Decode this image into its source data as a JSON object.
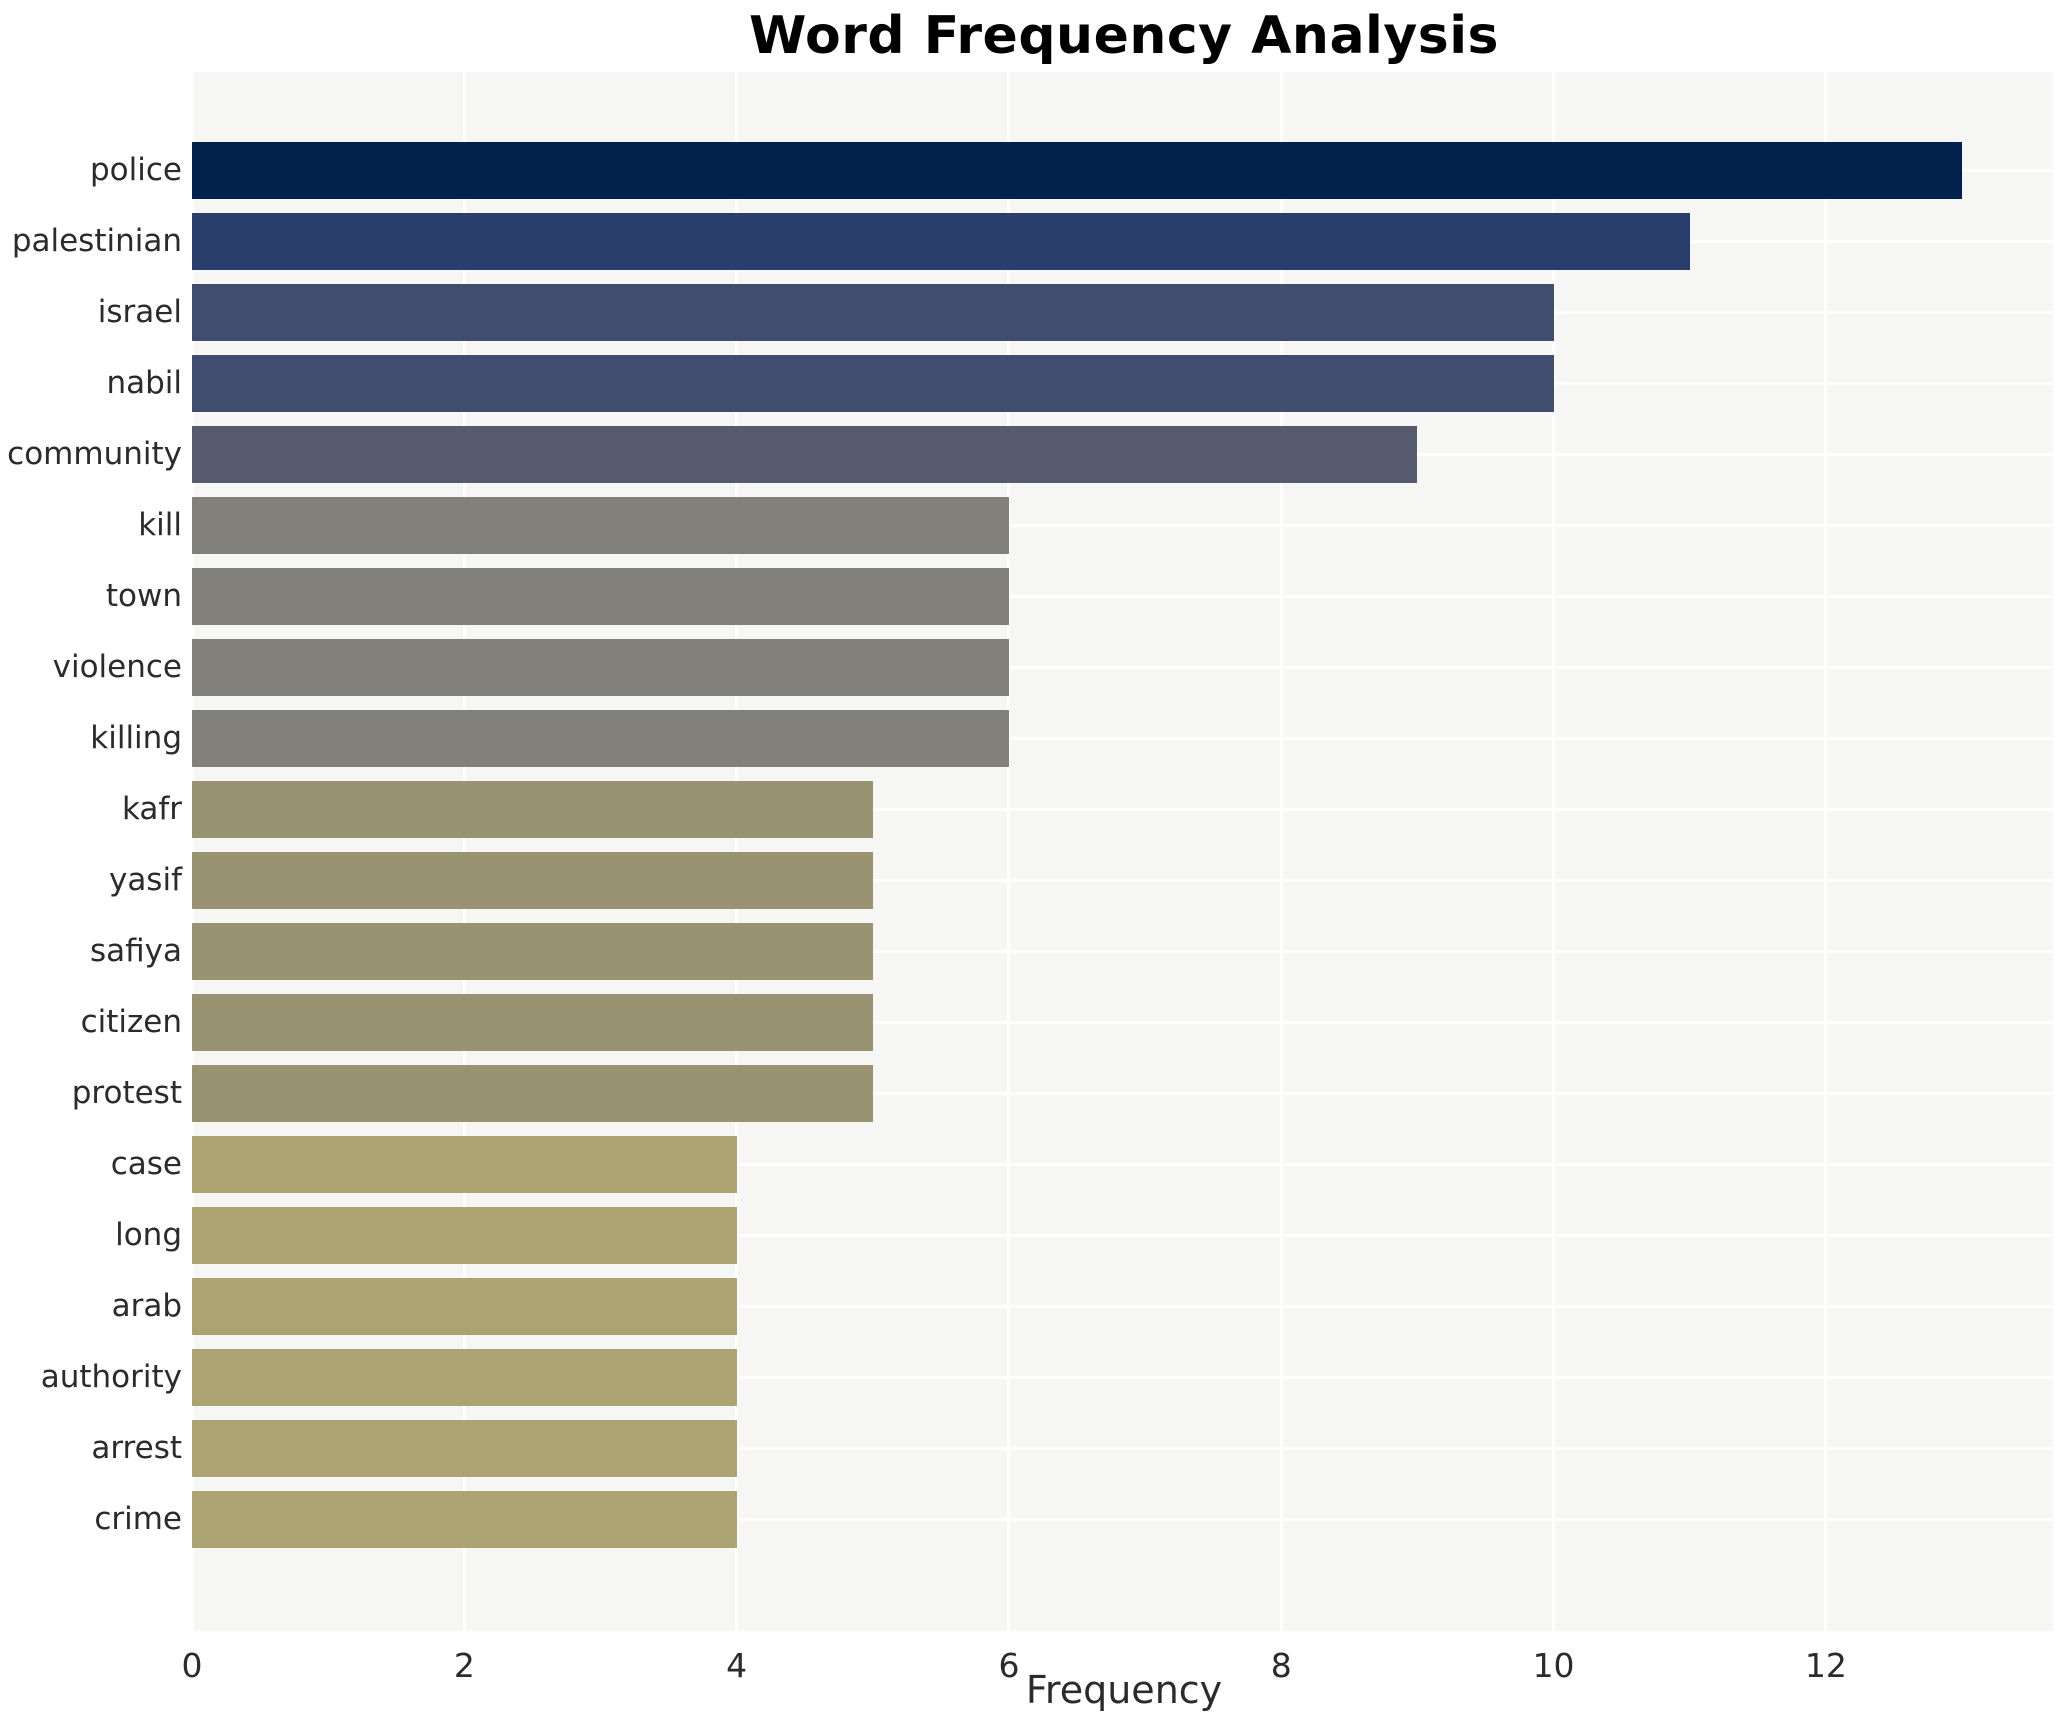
{
  "chart_data": {
    "type": "bar",
    "orientation": "horizontal",
    "title": "Word Frequency Analysis",
    "xlabel": "Frequency",
    "ylabel": "",
    "categories": [
      "police",
      "palestinian",
      "israel",
      "nabil",
      "community",
      "kill",
      "town",
      "violence",
      "killing",
      "kafr",
      "yasif",
      "safiya",
      "citizen",
      "protest",
      "case",
      "long",
      "arab",
      "authority",
      "arrest",
      "crime"
    ],
    "values": [
      13,
      11,
      10,
      10,
      9,
      6,
      6,
      6,
      6,
      5,
      5,
      5,
      5,
      5,
      4,
      4,
      4,
      4,
      4,
      4
    ],
    "bar_colors": [
      "#02224e",
      "#293e6c",
      "#404d6f",
      "#404d6f",
      "#565c6e",
      "#82807a",
      "#82807a",
      "#82807a",
      "#82807a",
      "#999372",
      "#999372",
      "#999372",
      "#999372",
      "#999372",
      "#aba371",
      "#aba371",
      "#aba371",
      "#aba371",
      "#aba371",
      "#aba371"
    ],
    "xticks": [
      0,
      2,
      4,
      6,
      8,
      10,
      12
    ],
    "xtick_labels": [
      "0",
      "2",
      "4",
      "6",
      "8",
      "10",
      "12"
    ],
    "xlim": [
      0,
      13.69
    ],
    "grid": true,
    "legend": false,
    "plot_bg": "#f6f6f5",
    "grid_color": "#ffffff",
    "figure_bg": "#ffffff"
  }
}
